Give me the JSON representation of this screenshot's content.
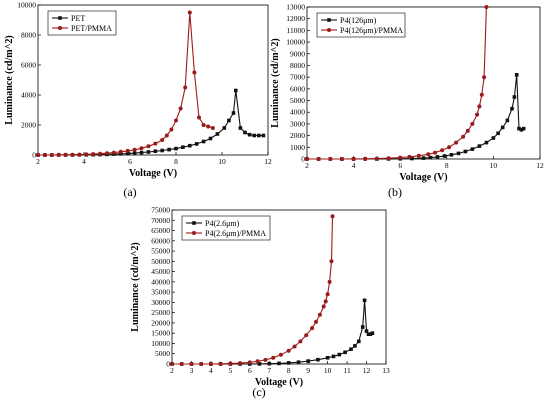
{
  "chart_data": [
    {
      "type": "line",
      "panel_label": "(a)",
      "xlabel": "Voltage (V)",
      "ylabel": "Luminance (cd/m^2)",
      "xlim": [
        2,
        12
      ],
      "ylim": [
        0,
        10000
      ],
      "xticks": [
        2,
        4,
        6,
        8,
        10,
        12
      ],
      "yticks": [
        0,
        2000,
        4000,
        6000,
        8000,
        10000
      ],
      "legend_position": "top-left",
      "series": [
        {
          "name": "PET",
          "color": "#111111",
          "marker": "square",
          "x": [
            2.0,
            2.3,
            2.6,
            2.9,
            3.2,
            3.5,
            3.8,
            4.1,
            4.4,
            4.7,
            5.0,
            5.3,
            5.6,
            5.9,
            6.2,
            6.5,
            6.8,
            7.1,
            7.4,
            7.7,
            8.0,
            8.3,
            8.6,
            8.9,
            9.2,
            9.5,
            9.8,
            10.1,
            10.3,
            10.5,
            10.6,
            10.8,
            11.0,
            11.2,
            11.4,
            11.6,
            11.8
          ],
          "y": [
            0,
            0,
            0,
            0,
            0,
            0,
            10,
            10,
            20,
            30,
            40,
            60,
            80,
            100,
            130,
            160,
            200,
            250,
            300,
            360,
            430,
            520,
            620,
            740,
            900,
            1100,
            1400,
            1800,
            2300,
            2800,
            4300,
            1800,
            1500,
            1350,
            1300,
            1300,
            1300
          ]
        },
        {
          "name": "PET/PMMA",
          "color": "#9b1b1b",
          "marker": "circle",
          "x": [
            2.0,
            2.3,
            2.6,
            2.9,
            3.2,
            3.5,
            3.8,
            4.1,
            4.4,
            4.7,
            5.0,
            5.3,
            5.6,
            5.9,
            6.2,
            6.5,
            6.8,
            7.1,
            7.4,
            7.6,
            7.8,
            8.0,
            8.2,
            8.4,
            8.6,
            8.8,
            9.0,
            9.2,
            9.4,
            9.6
          ],
          "y": [
            0,
            0,
            0,
            10,
            10,
            20,
            30,
            40,
            60,
            90,
            120,
            160,
            210,
            270,
            350,
            450,
            580,
            760,
            1000,
            1300,
            1700,
            2300,
            3100,
            4500,
            9500,
            5500,
            2500,
            2000,
            1900,
            1800
          ]
        }
      ]
    },
    {
      "type": "line",
      "panel_label": "(b)",
      "xlabel": "Voltage (V)",
      "ylabel": "Luminance (cd/m^2)",
      "xlim": [
        2,
        12
      ],
      "ylim": [
        0,
        13000
      ],
      "xticks": [
        2,
        4,
        6,
        8,
        10,
        12
      ],
      "yticks": [
        0,
        1000,
        2000,
        3000,
        4000,
        5000,
        6000,
        7000,
        8000,
        9000,
        10000,
        11000,
        12000,
        13000
      ],
      "legend_position": "top-left",
      "series": [
        {
          "name": "P4(126μm)",
          "color": "#111111",
          "marker": "square",
          "x": [
            2.0,
            2.5,
            3.0,
            3.5,
            4.0,
            4.5,
            5.0,
            5.5,
            6.0,
            6.5,
            7.0,
            7.3,
            7.6,
            7.9,
            8.2,
            8.5,
            8.8,
            9.1,
            9.4,
            9.7,
            10.0,
            10.2,
            10.4,
            10.6,
            10.8,
            10.9,
            11.0,
            11.1,
            11.2,
            11.3
          ],
          "y": [
            0,
            0,
            0,
            0,
            0,
            0,
            0,
            10,
            20,
            40,
            80,
            120,
            180,
            260,
            360,
            480,
            640,
            850,
            1100,
            1400,
            1800,
            2200,
            2700,
            3300,
            4300,
            5300,
            7200,
            2600,
            2500,
            2600
          ]
        },
        {
          "name": "P4(126μm)/PMMA",
          "color": "#9b1b1b",
          "marker": "circle",
          "x": [
            2.0,
            2.5,
            3.0,
            3.5,
            4.0,
            4.5,
            5.0,
            5.5,
            6.0,
            6.4,
            6.8,
            7.2,
            7.5,
            7.8,
            8.1,
            8.4,
            8.7,
            8.9,
            9.1,
            9.3,
            9.4,
            9.5,
            9.6,
            9.7
          ],
          "y": [
            0,
            0,
            0,
            0,
            10,
            20,
            40,
            70,
            120,
            180,
            270,
            400,
            550,
            750,
            1000,
            1400,
            1900,
            2400,
            3000,
            3800,
            4500,
            5500,
            7000,
            13000
          ]
        }
      ]
    },
    {
      "type": "line",
      "panel_label": "(c)",
      "xlabel": "Voltage (V)",
      "ylabel": "Luminance (cd/m^2)",
      "xlim": [
        2,
        13
      ],
      "ylim": [
        0,
        75000
      ],
      "xticks": [
        2,
        3,
        4,
        5,
        6,
        7,
        8,
        9,
        10,
        11,
        12,
        13
      ],
      "yticks": [
        0,
        5000,
        10000,
        15000,
        20000,
        25000,
        30000,
        35000,
        40000,
        45000,
        50000,
        55000,
        60000,
        65000,
        70000,
        75000
      ],
      "legend_position": "top-left",
      "series": [
        {
          "name": "P4(2.6μm)",
          "color": "#111111",
          "marker": "square",
          "x": [
            2.0,
            2.5,
            3.0,
            3.5,
            4.0,
            4.5,
            5.0,
            5.5,
            6.0,
            6.5,
            7.0,
            7.5,
            8.0,
            8.5,
            9.0,
            9.5,
            10.0,
            10.3,
            10.6,
            10.9,
            11.2,
            11.4,
            11.6,
            11.8,
            11.9,
            12.0,
            12.1,
            12.2,
            12.3
          ],
          "y": [
            0,
            0,
            0,
            0,
            0,
            0,
            0,
            0,
            0,
            50,
            150,
            300,
            550,
            900,
            1400,
            2100,
            3000,
            3700,
            4600,
            5700,
            7200,
            8800,
            11000,
            18000,
            31000,
            16000,
            14500,
            14500,
            15000
          ]
        },
        {
          "name": "P4(2.6μm)/PMMA",
          "color": "#9b1b1b",
          "marker": "circle",
          "x": [
            2.0,
            2.5,
            3.0,
            3.5,
            4.0,
            4.5,
            5.0,
            5.5,
            6.0,
            6.4,
            6.8,
            7.2,
            7.6,
            8.0,
            8.3,
            8.6,
            8.9,
            9.2,
            9.4,
            9.6,
            9.8,
            9.9,
            10.0,
            10.1,
            10.2,
            10.25
          ],
          "y": [
            0,
            0,
            0,
            0,
            0,
            100,
            250,
            450,
            800,
            1300,
            2000,
            3000,
            4500,
            6500,
            8500,
            11000,
            14000,
            17500,
            20500,
            24000,
            28000,
            30500,
            34000,
            40000,
            50000,
            72000
          ]
        }
      ]
    }
  ]
}
